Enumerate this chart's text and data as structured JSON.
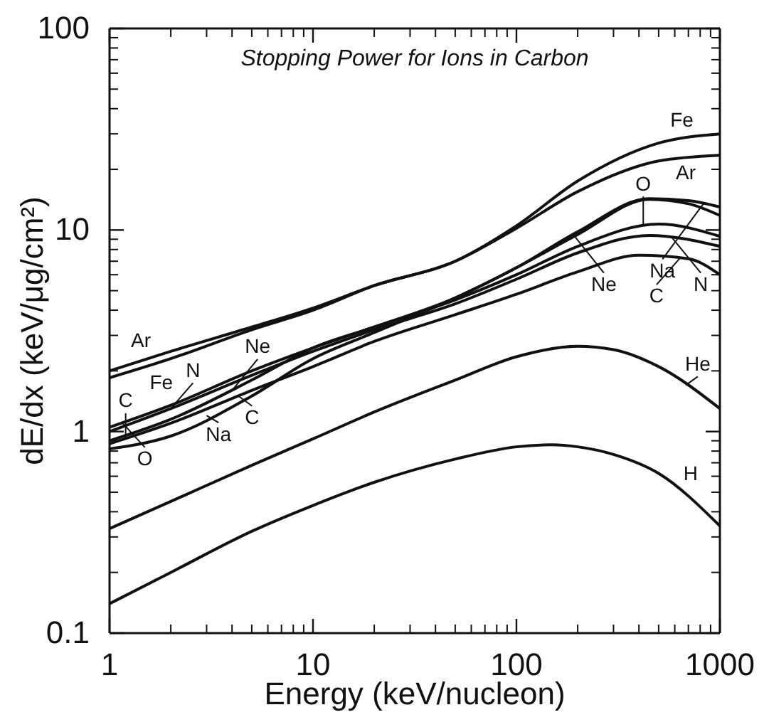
{
  "chart_data": {
    "type": "line",
    "title": "Stopping Power for Ions in Carbon",
    "xlabel": "Energy (keV/nucleon)",
    "ylabel": "dE/dx (keV/μg/cm²)",
    "log": "xy",
    "xlim": [
      1,
      1000
    ],
    "ylim": [
      0.1,
      100
    ],
    "xticks": [
      1,
      10,
      100,
      1000
    ],
    "yticks": [
      0.1,
      1,
      10,
      100
    ],
    "grid": false,
    "marker": "none",
    "line_style": "solid",
    "series": [
      {
        "color": "#111111",
        "x": [
          1,
          2,
          5,
          10,
          20,
          50,
          100,
          200,
          500,
          1000
        ],
        "values": [
          1.85,
          2.3,
          3.2,
          4.0,
          5.3,
          7.0,
          10.5,
          17.5,
          27,
          30
        ]
      },
      {
        "color": "#111111",
        "x": [
          1,
          2,
          5,
          10,
          20,
          50,
          100,
          200,
          500,
          1000
        ],
        "values": [
          2.0,
          2.5,
          3.3,
          4.1,
          5.3,
          7.0,
          10.2,
          15.5,
          22,
          23.5
        ]
      },
      {
        "color": "#111111",
        "x": [
          1,
          2,
          5,
          10,
          20,
          50,
          100,
          200,
          450,
          700,
          1000
        ],
        "values": [
          0.82,
          0.95,
          1.5,
          2.3,
          3.1,
          4.6,
          6.5,
          9.8,
          14.3,
          14,
          13
        ]
      },
      {
        "color": "#111111",
        "x": [
          1,
          2,
          5,
          10,
          20,
          50,
          100,
          200,
          450,
          700,
          1000
        ],
        "values": [
          0.9,
          1.15,
          1.8,
          2.6,
          3.3,
          4.6,
          6.5,
          9.5,
          14.2,
          13.5,
          11.8
        ]
      },
      {
        "color": "#111111",
        "x": [
          1,
          2,
          5,
          10,
          20,
          50,
          100,
          200,
          500,
          1000
        ],
        "values": [
          1.05,
          1.35,
          2.0,
          2.6,
          3.3,
          4.5,
          6.0,
          8.3,
          10.7,
          9.3
        ]
      },
      {
        "color": "#111111",
        "x": [
          1,
          2,
          5,
          10,
          20,
          50,
          100,
          200,
          450,
          1000
        ],
        "values": [
          1.0,
          1.3,
          1.9,
          2.5,
          3.2,
          4.3,
          5.7,
          7.7,
          9.4,
          8.3
        ]
      },
      {
        "color": "#111111",
        "x": [
          1,
          2,
          5,
          10,
          20,
          50,
          100,
          200,
          400,
          700,
          1000
        ],
        "values": [
          0.87,
          1.1,
          1.6,
          2.1,
          2.8,
          3.8,
          4.8,
          6.2,
          7.5,
          7.2,
          6.0
        ]
      },
      {
        "color": "#111111",
        "x": [
          1,
          2,
          5,
          10,
          20,
          50,
          100,
          200,
          300,
          500,
          1000
        ],
        "values": [
          0.33,
          0.45,
          0.68,
          0.92,
          1.25,
          1.8,
          2.35,
          2.65,
          2.55,
          2.1,
          1.3
        ]
      },
      {
        "color": "#111111",
        "x": [
          1,
          2,
          5,
          10,
          20,
          50,
          100,
          150,
          200,
          300,
          500,
          1000
        ],
        "values": [
          0.14,
          0.2,
          0.32,
          0.43,
          0.56,
          0.73,
          0.84,
          0.86,
          0.84,
          0.77,
          0.62,
          0.34
        ]
      }
    ],
    "annotations": [
      {
        "text": "Ar",
        "x": 1.6,
        "y": 2.3
      },
      {
        "text": "Fe",
        "x": 1.6,
        "y": 2.1
      },
      {
        "text": "N",
        "x": 2,
        "y": 1.3
      },
      {
        "text": "C",
        "x": 4.3,
        "y": 1.5
      },
      {
        "text": "O",
        "x": 1.16,
        "y": 1.1
      },
      {
        "text": "Ne",
        "x": 4,
        "y": 1.6
      },
      {
        "text": "Na",
        "x": 3,
        "y": 1.2
      },
      {
        "text": "C",
        "x": 1.2,
        "y": 0.92
      },
      {
        "text": "Fe",
        "x": 650,
        "y": 28.5
      },
      {
        "text": "Ar",
        "x": 680,
        "y": 23
      },
      {
        "text": "Na",
        "x": 830,
        "y": 13.5
      },
      {
        "text": "Ne",
        "x": 190,
        "y": 9.5
      },
      {
        "text": "O",
        "x": 420,
        "y": 10.6
      },
      {
        "text": "N",
        "x": 580,
        "y": 9.2
      },
      {
        "text": "C",
        "x": 640,
        "y": 7.3
      },
      {
        "text": "He",
        "x": 680,
        "y": 1.7
      },
      {
        "text": "H",
        "x": 640,
        "y": 0.5
      }
    ]
  }
}
